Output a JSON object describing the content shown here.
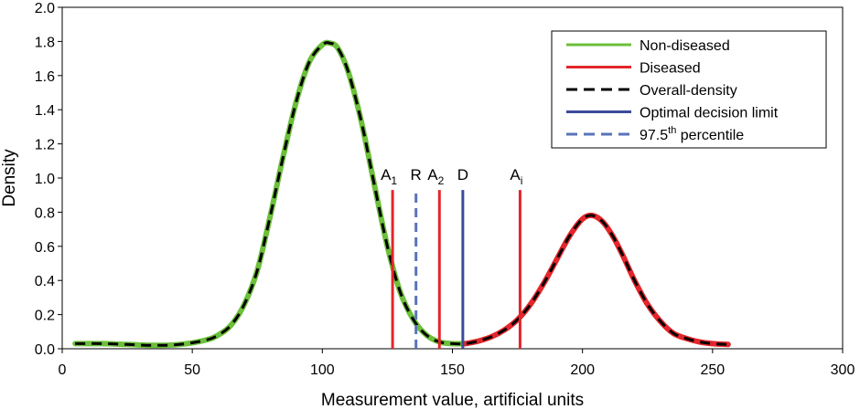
{
  "chart_data": {
    "type": "line",
    "title": "",
    "xlabel": "Measurement value, artificial units",
    "ylabel": "Density",
    "xlim": [
      0,
      300
    ],
    "ylim": [
      0,
      2.0
    ],
    "x_ticks": [
      0,
      50,
      100,
      150,
      200,
      250,
      300
    ],
    "y_ticks": [
      0.0,
      0.2,
      0.4,
      0.6,
      0.8,
      1.0,
      1.2,
      1.4,
      1.6,
      1.8,
      2.0
    ],
    "grid": false,
    "legend_position": "top-right",
    "series": [
      {
        "name": "Non-diseased",
        "color": "#6cbf3a",
        "style": "solid",
        "x": [
          5,
          15,
          25,
          35,
          45,
          55,
          60,
          65,
          70,
          75,
          80,
          85,
          90,
          95,
          100,
          103,
          106,
          110,
          115,
          120,
          125,
          130,
          135,
          140,
          145,
          150,
          155
        ],
        "y": [
          0.03,
          0.03,
          0.025,
          0.02,
          0.025,
          0.05,
          0.08,
          0.14,
          0.26,
          0.46,
          0.78,
          1.13,
          1.45,
          1.68,
          1.78,
          1.79,
          1.76,
          1.62,
          1.33,
          0.96,
          0.6,
          0.33,
          0.17,
          0.08,
          0.04,
          0.03,
          0.03
        ]
      },
      {
        "name": "Diseased",
        "color": "#e3262b",
        "style": "solid",
        "x": [
          155,
          160,
          165,
          170,
          175,
          180,
          185,
          190,
          195,
          200,
          204,
          208,
          212,
          216,
          220,
          225,
          230,
          235,
          240,
          245,
          250,
          256
        ],
        "y": [
          0.03,
          0.045,
          0.07,
          0.11,
          0.17,
          0.26,
          0.38,
          0.52,
          0.66,
          0.76,
          0.78,
          0.74,
          0.65,
          0.53,
          0.4,
          0.26,
          0.16,
          0.09,
          0.06,
          0.04,
          0.03,
          0.025
        ]
      },
      {
        "name": "Overall-density",
        "color": "#000000",
        "style": "dashed",
        "x": [
          5,
          15,
          25,
          35,
          45,
          55,
          60,
          65,
          70,
          75,
          80,
          85,
          90,
          95,
          100,
          103,
          106,
          110,
          115,
          120,
          125,
          130,
          135,
          140,
          145,
          150,
          155,
          160,
          165,
          170,
          175,
          180,
          185,
          190,
          195,
          200,
          204,
          208,
          212,
          216,
          220,
          225,
          230,
          235,
          240,
          245,
          250,
          256
        ],
        "y": [
          0.03,
          0.03,
          0.025,
          0.02,
          0.025,
          0.05,
          0.08,
          0.14,
          0.26,
          0.46,
          0.78,
          1.13,
          1.45,
          1.68,
          1.78,
          1.79,
          1.76,
          1.62,
          1.33,
          0.96,
          0.6,
          0.33,
          0.17,
          0.08,
          0.04,
          0.03,
          0.03,
          0.045,
          0.07,
          0.11,
          0.17,
          0.26,
          0.38,
          0.52,
          0.66,
          0.76,
          0.78,
          0.74,
          0.65,
          0.53,
          0.4,
          0.26,
          0.16,
          0.09,
          0.06,
          0.04,
          0.03,
          0.025
        ]
      }
    ],
    "vertical_lines": [
      {
        "label": "A",
        "sub": "1",
        "sup": "",
        "x": 127,
        "y_top": 0.93,
        "color": "#e3262b",
        "style": "solid",
        "legend": ""
      },
      {
        "label": "R",
        "sub": "",
        "sup": "",
        "x": 136,
        "y_top": 0.93,
        "color": "#5a73b8",
        "style": "dashed",
        "legend": "97.5th percentile"
      },
      {
        "label": "A",
        "sub": "2",
        "sup": "",
        "x": 145,
        "y_top": 0.93,
        "color": "#e3262b",
        "style": "solid",
        "legend": ""
      },
      {
        "label": "D",
        "sub": "",
        "sup": "",
        "x": 154,
        "y_top": 0.93,
        "color": "#3b4b9a",
        "style": "solid",
        "legend": "Optimal decision limit"
      },
      {
        "label": "A",
        "sub": "i",
        "sup": "",
        "x": 176,
        "y_top": 0.93,
        "color": "#e3262b",
        "style": "solid",
        "legend": ""
      }
    ],
    "legend": [
      {
        "name": "Non-diseased",
        "color": "#6cbf3a",
        "style": "solid"
      },
      {
        "name": "Diseased",
        "color": "#e3262b",
        "style": "solid"
      },
      {
        "name": "Overall-density",
        "color": "#000000",
        "style": "dashed"
      },
      {
        "name": "Optimal decision limit",
        "color": "#3b4b9a",
        "style": "solid"
      },
      {
        "name": "97.5",
        "sup": "th",
        "rest": " percentile",
        "color": "#5a73b8",
        "style": "dashed"
      }
    ]
  }
}
